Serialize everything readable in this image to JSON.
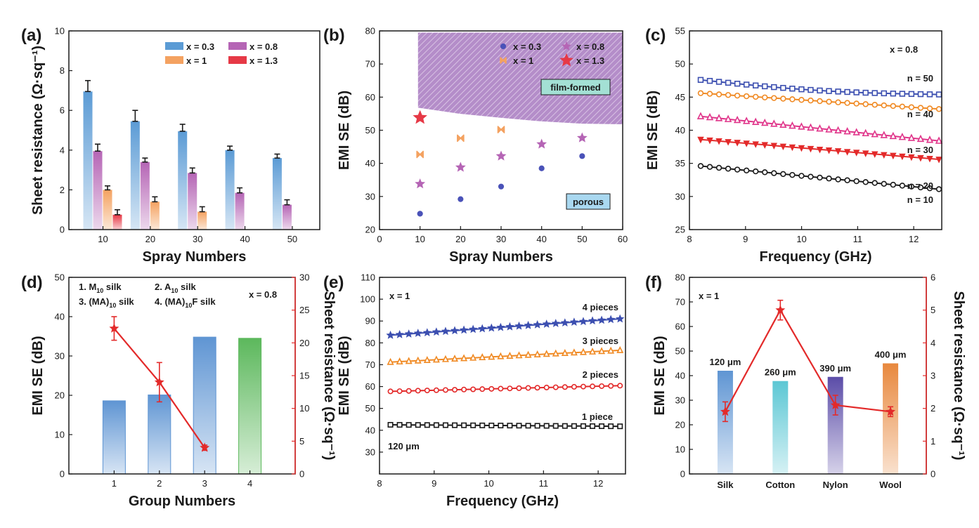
{
  "chart_data": [
    {
      "id": "a",
      "panel_label": "(a)",
      "type": "bar",
      "xlabel": "Spray Numbers",
      "ylabel": "Sheet resistance (Ω·sq⁻¹)",
      "ylim": [
        0,
        10
      ],
      "yticks": [
        0,
        2,
        4,
        6,
        8,
        10
      ],
      "categories": [
        "10",
        "20",
        "30",
        "40",
        "50"
      ],
      "legend_position": "top-right",
      "series": [
        {
          "name": "x = 0.3",
          "color": "#5b9bd5",
          "values": [
            6.95,
            5.45,
            4.95,
            4.0,
            3.6
          ],
          "errors": [
            0.55,
            0.55,
            0.35,
            0.2,
            0.2
          ]
        },
        {
          "name": "x = 0.8",
          "color": "#b565b5",
          "values": [
            3.95,
            3.4,
            2.85,
            1.85,
            1.25
          ],
          "errors": [
            0.35,
            0.2,
            0.25,
            0.25,
            0.25
          ]
        },
        {
          "name": "x = 1",
          "color": "#f4a261",
          "values": [
            2.0,
            1.4,
            0.9,
            null,
            null
          ],
          "errors": [
            0.2,
            0.25,
            0.25,
            null,
            null
          ]
        },
        {
          "name": "x = 1.3",
          "color": "#e63946",
          "values": [
            0.75,
            null,
            null,
            null,
            null
          ],
          "errors": [
            0.25,
            null,
            null,
            null,
            null
          ]
        }
      ]
    },
    {
      "id": "b",
      "panel_label": "(b)",
      "type": "scatter",
      "xlabel": "Spray Numbers",
      "ylabel": "EMI SE (dB)",
      "xlim": [
        0,
        60
      ],
      "ylim": [
        20,
        80
      ],
      "xticks": [
        0,
        10,
        20,
        30,
        40,
        50,
        60
      ],
      "yticks": [
        20,
        30,
        40,
        50,
        60,
        70,
        80
      ],
      "legend_position": "top-right",
      "series": [
        {
          "name": "x = 0.3",
          "color": "#4a52b8",
          "marker": "circle",
          "x": [
            10,
            20,
            30,
            40,
            50
          ],
          "y": [
            24.8,
            29.2,
            33.0,
            38.5,
            42.2
          ]
        },
        {
          "name": "x = 0.8",
          "color": "#b565b5",
          "marker": "star",
          "x": [
            10,
            20,
            30,
            40,
            50
          ],
          "y": [
            33.8,
            38.8,
            42.2,
            45.8,
            47.7
          ]
        },
        {
          "name": "x = 1",
          "color": "#f4a261",
          "marker": "bowtie",
          "x": [
            10,
            20,
            30
          ],
          "y": [
            42.7,
            47.6,
            50.2
          ]
        },
        {
          "name": "x = 1.3",
          "color": "#e63946",
          "marker": "bigstar",
          "x": [
            10
          ],
          "y": [
            53.8
          ]
        }
      ],
      "region": {
        "label": "film-formed",
        "color": "#a77bbf",
        "x_start": 9.5,
        "x_end": 60,
        "y_top": 79.5,
        "boundary_y": [
          56.8,
          55.0,
          53.8,
          52.7,
          52.0,
          51.8
        ]
      },
      "annotations": [
        "film-formed",
        "porous"
      ]
    },
    {
      "id": "c",
      "panel_label": "(c)",
      "type": "line",
      "xlabel": "Frequency (GHz)",
      "ylabel": "EMI SE (dB)",
      "xlim": [
        8,
        12.5
      ],
      "ylim": [
        25,
        55
      ],
      "xticks": [
        8,
        9,
        10,
        11,
        12
      ],
      "yticks": [
        25,
        30,
        35,
        40,
        45,
        50,
        55
      ],
      "condition": "x = 0.8",
      "series": [
        {
          "name": "n = 50",
          "color": "#3c4fb0",
          "marker": "square",
          "start": 47.6,
          "end": 45.4,
          "dip": 0.5
        },
        {
          "name": "n = 40",
          "color": "#f08a24",
          "marker": "circle",
          "start": 45.6,
          "end": 43.2
        },
        {
          "name": "n = 30",
          "color": "#e0358a",
          "marker": "triangle",
          "start": 42.1,
          "end": 38.4
        },
        {
          "name": "n = 20",
          "color": "#e32a2a",
          "marker": "tri-down",
          "start": 38.6,
          "end": 35.6
        },
        {
          "name": "n = 10",
          "color": "#1a1a1a",
          "marker": "circle",
          "start": 34.6,
          "end": 31.1
        }
      ]
    },
    {
      "id": "d",
      "panel_label": "(d)",
      "type": "bar",
      "xlabel": "Group Numbers",
      "ylabel": "EMI SE (dB)",
      "ylabel_right": "Sheet resistance (Ω·sq⁻¹)",
      "ylim": [
        0,
        50
      ],
      "ylim_right": [
        0,
        30
      ],
      "yticks": [
        0,
        10,
        20,
        30,
        40,
        50
      ],
      "yticks_right": [
        0,
        5,
        10,
        15,
        20,
        25,
        30
      ],
      "categories": [
        "1",
        "2",
        "3",
        "4"
      ],
      "values": [
        18.6,
        20.1,
        34.8,
        34.5
      ],
      "bar_colors": [
        "#5f95d3",
        "#5f95d3",
        "#5f95d3",
        "#5cb85c"
      ],
      "line": {
        "name": "Sheet resistance",
        "color": "#e32a2a",
        "x": [
          1,
          2,
          3
        ],
        "y": [
          22.2,
          14.0,
          4.0
        ],
        "errors": [
          1.8,
          3.0,
          0.4
        ]
      },
      "legend": [
        "1. M",
        "2. A",
        "3. (MA)",
        "4. (MA)"
      ],
      "legend_sub": [
        "10",
        "10",
        "10",
        "10"
      ],
      "legend_suffix": [
        " silk",
        " silk",
        " silk",
        "F silk"
      ],
      "condition": "x = 0.8"
    },
    {
      "id": "e",
      "panel_label": "(e)",
      "type": "line",
      "xlabel": "Frequency (GHz)",
      "ylabel": "EMI SE (dB)",
      "xlim": [
        8,
        12.5
      ],
      "ylim": [
        20,
        110
      ],
      "yticks": [
        30,
        40,
        50,
        60,
        70,
        80,
        90,
        100,
        110
      ],
      "xticks": [
        8,
        9,
        10,
        11,
        12
      ],
      "condition": "x = 1",
      "thickness_label": "120 μm",
      "series": [
        {
          "name": "4 pieces",
          "color": "#3c4fb0",
          "marker": "star",
          "start": 83.5,
          "end": 91.0
        },
        {
          "name": "3 pieces",
          "color": "#f08a24",
          "marker": "triangle",
          "start": 71.2,
          "end": 76.6
        },
        {
          "name": "2 pieces",
          "color": "#e32a2a",
          "marker": "circle",
          "start": 57.8,
          "end": 60.4
        },
        {
          "name": "1 piece",
          "color": "#1a1a1a",
          "marker": "square",
          "start": 42.5,
          "end": 41.8
        }
      ]
    },
    {
      "id": "f",
      "panel_label": "(f)",
      "type": "bar",
      "xlabel": "",
      "ylabel": "EMI SE (dB)",
      "ylabel_right": "Sheet resistance (Ω·sq⁻¹)",
      "ylim": [
        0,
        80
      ],
      "ylim_right": [
        0,
        6
      ],
      "yticks": [
        0,
        10,
        20,
        30,
        40,
        50,
        60,
        70,
        80
      ],
      "yticks_right": [
        0,
        1,
        2,
        3,
        4,
        5,
        6
      ],
      "categories": [
        "Silk",
        "Cotton",
        "Nylon",
        "Wool"
      ],
      "values": [
        42.0,
        37.8,
        39.5,
        45.0
      ],
      "bar_colors": [
        "#5f95d3",
        "#5bc7d4",
        "#5b4ca8",
        "#e8883d"
      ],
      "thickness_labels": [
        "120 μm",
        "260 μm",
        "390 μm",
        "400 μm"
      ],
      "line": {
        "name": "Sheet resistance",
        "color": "#e32a2a",
        "x": [
          1,
          2,
          3,
          4
        ],
        "y": [
          1.9,
          5.0,
          2.1,
          1.9
        ],
        "errors": [
          0.3,
          0.3,
          0.3,
          0.15
        ]
      },
      "condition": "x = 1"
    }
  ]
}
